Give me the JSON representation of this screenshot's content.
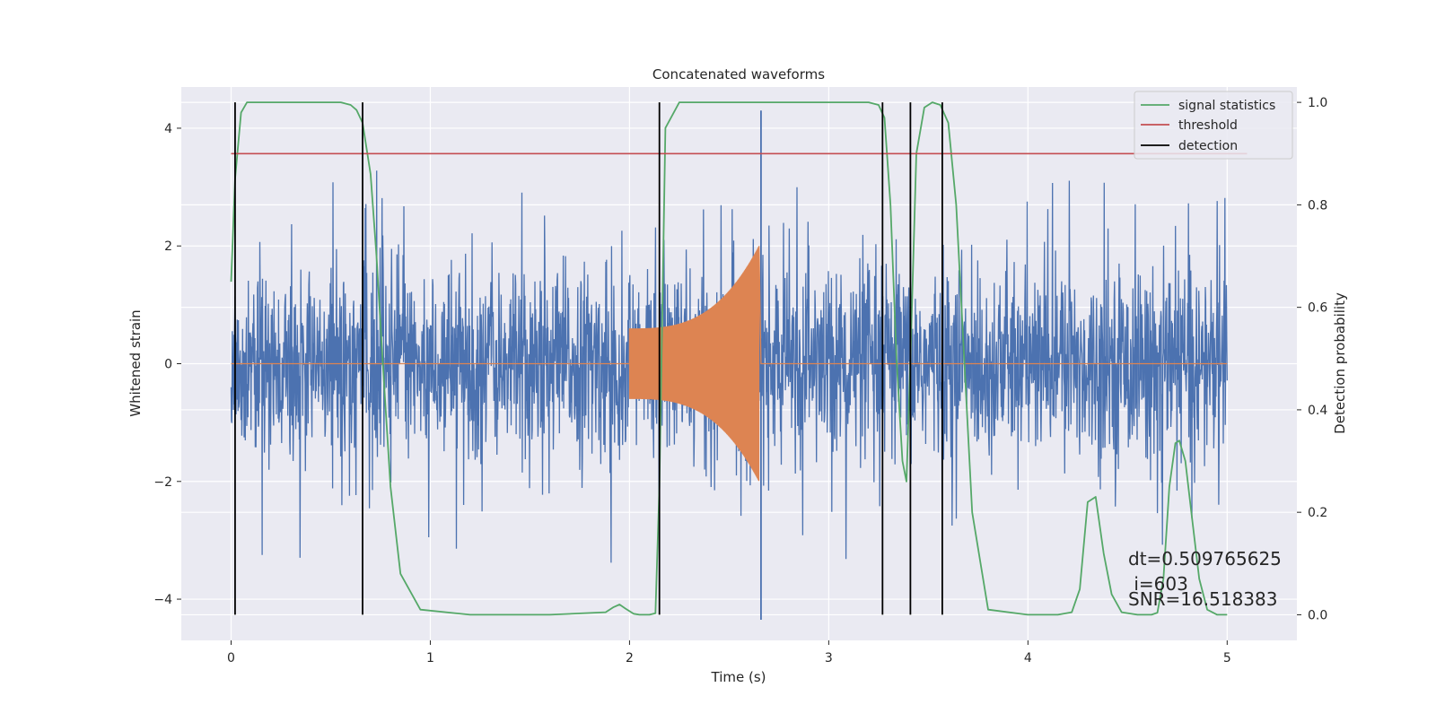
{
  "chart_data": {
    "type": "line",
    "title": "Concatenated waveforms",
    "xlabel": "Time (s)",
    "ylabel": "Whitened strain",
    "y2label": "Detection probability",
    "xlim": [
      -0.25,
      5.35
    ],
    "ylim": [
      -4.7,
      4.7
    ],
    "y2lim": [
      -0.05,
      1.03
    ],
    "x_ticks": [
      0,
      1,
      2,
      3,
      4,
      5
    ],
    "x_tick_labels": [
      "0",
      "1",
      "2",
      "3",
      "4",
      "5"
    ],
    "y_ticks": [
      -4,
      -2,
      0,
      2,
      4
    ],
    "y_tick_labels": [
      "−4",
      "−2",
      "0",
      "2",
      "4"
    ],
    "y2_ticks": [
      0.0,
      0.2,
      0.4,
      0.6,
      0.8,
      1.0
    ],
    "y2_tick_labels": [
      "0.0",
      "0.2",
      "0.4",
      "0.6",
      "0.8",
      "1.0"
    ],
    "grid": true,
    "legend": {
      "placement": "top-right",
      "entries": [
        "signal statistics",
        "threshold",
        "detection"
      ]
    },
    "colors": {
      "strain": "#4c72b0",
      "template": "#dd8452",
      "signal_statistics": "#55a868",
      "threshold": "#c44e52",
      "detection": "#000000",
      "plot_bg": "#eaeaf2",
      "grid": "#ffffff"
    },
    "series": [
      {
        "name": "signal statistics",
        "axis": "right",
        "x": [
          0.0,
          0.02,
          0.05,
          0.08,
          0.12,
          0.2,
          0.4,
          0.55,
          0.6,
          0.63,
          0.66,
          0.7,
          0.73,
          0.76,
          0.8,
          0.85,
          0.95,
          1.2,
          1.6,
          1.88,
          1.92,
          1.95,
          1.98,
          2.02,
          2.05,
          2.1,
          2.13,
          2.15,
          2.18,
          2.25,
          2.5,
          3.0,
          3.2,
          3.25,
          3.28,
          3.31,
          3.34,
          3.37,
          3.39,
          3.41,
          3.44,
          3.48,
          3.52,
          3.56,
          3.6,
          3.64,
          3.68,
          3.72,
          3.8,
          4.0,
          4.15,
          4.22,
          4.26,
          4.3,
          4.34,
          4.38,
          4.42,
          4.47,
          4.55,
          4.62,
          4.65,
          4.68,
          4.71,
          4.74,
          4.76,
          4.79,
          4.82,
          4.86,
          4.9,
          4.95,
          5.0
        ],
        "y": [
          0.65,
          0.85,
          0.98,
          1.0,
          1.0,
          1.0,
          1.0,
          1.0,
          0.995,
          0.985,
          0.96,
          0.86,
          0.7,
          0.5,
          0.25,
          0.08,
          0.01,
          0.0,
          0.0,
          0.005,
          0.015,
          0.02,
          0.012,
          0.002,
          0.0,
          0.0,
          0.003,
          0.25,
          0.95,
          1.0,
          1.0,
          1.0,
          1.0,
          0.995,
          0.97,
          0.8,
          0.5,
          0.3,
          0.26,
          0.5,
          0.9,
          0.99,
          1.0,
          0.995,
          0.96,
          0.8,
          0.5,
          0.2,
          0.01,
          0.0,
          0.0,
          0.005,
          0.05,
          0.22,
          0.23,
          0.12,
          0.04,
          0.005,
          0.0,
          0.0,
          0.004,
          0.07,
          0.25,
          0.335,
          0.34,
          0.3,
          0.2,
          0.07,
          0.01,
          0.0,
          0.0
        ]
      },
      {
        "name": "threshold",
        "axis": "right",
        "x": [
          0.0,
          5.1
        ],
        "y": [
          0.9,
          0.9
        ]
      }
    ],
    "strain": {
      "x_range": [
        0.0,
        5.0
      ],
      "typical_amplitude": 1.3,
      "peak_amplitude": 3.5
    },
    "template": {
      "x_range": [
        2.0,
        2.66
      ],
      "start_amplitude": 0.6,
      "peak_amplitude": 2.0,
      "peak_time": 2.65
    },
    "detections_x": [
      0.02,
      0.66,
      2.15,
      3.27,
      3.41,
      3.57
    ],
    "spike_x": 2.66,
    "annotations": [
      "dt=0.509765625",
      " i=603",
      "SNR=16.518383"
    ]
  }
}
